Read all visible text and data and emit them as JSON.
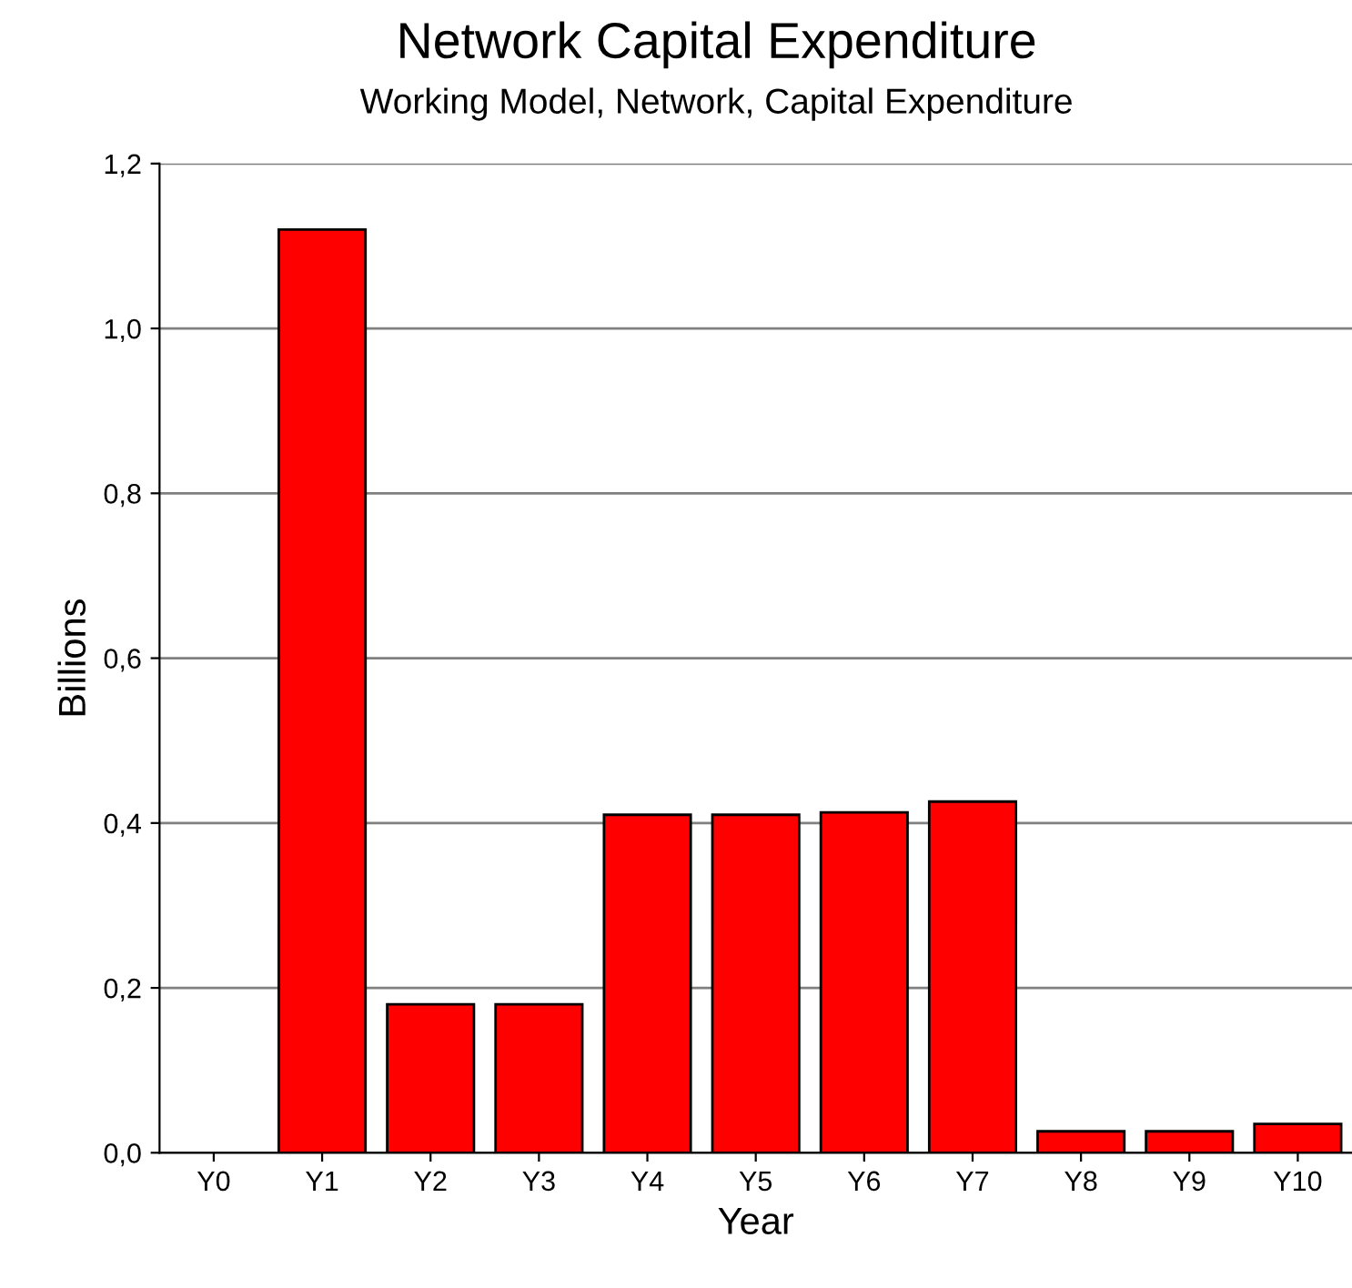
{
  "chart_data": {
    "type": "bar",
    "title": "Network Capital Expenditure",
    "subtitle": "Working Model, Network, Capital Expenditure",
    "xlabel": "Year",
    "ylabel": "Billions",
    "categories": [
      "Y0",
      "Y1",
      "Y2",
      "Y3",
      "Y4",
      "Y5",
      "Y6",
      "Y7",
      "Y8",
      "Y9",
      "Y10"
    ],
    "values": [
      null,
      1.12,
      0.18,
      0.18,
      0.41,
      0.41,
      0.413,
      0.426,
      0.026,
      0.026,
      0.035
    ],
    "color": "#ff0000",
    "ylim": [
      0,
      1.2
    ],
    "yticks": [
      {
        "value": 0,
        "label": "0,0"
      },
      {
        "value": 0.2,
        "label": "0,2"
      },
      {
        "value": 0.4,
        "label": "0,4"
      },
      {
        "value": 0.6,
        "label": "0,6"
      },
      {
        "value": 0.8,
        "label": "0,8"
      },
      {
        "value": 1.0,
        "label": "1,0"
      },
      {
        "value": 1.2,
        "label": "1,2"
      }
    ],
    "grid": "y",
    "legend": false
  }
}
